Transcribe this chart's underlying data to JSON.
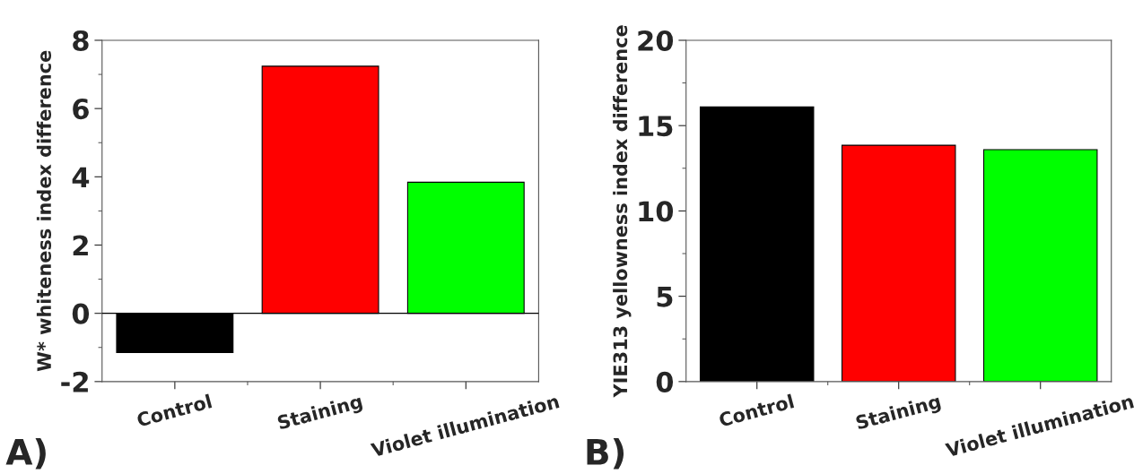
{
  "chart_data": [
    {
      "type": "bar",
      "ylabel": "W* whiteness index difference",
      "categories": [
        "Control",
        "Staining",
        "Violet illumination"
      ],
      "values": [
        -1.15,
        7.24,
        3.84
      ],
      "colors": [
        "#000000",
        "#ff0000",
        "#00ff00"
      ],
      "ylim": [
        -2,
        8
      ],
      "yticks": [
        -2,
        0,
        2,
        4,
        6,
        8
      ],
      "grid": false,
      "ref_lines": [
        {
          "axis": "y",
          "value": 0,
          "color": "#000000"
        }
      ],
      "annotations": [
        "A)"
      ]
    },
    {
      "type": "bar",
      "ylabel": "YIE313 yellowness index difference",
      "categories": [
        "Control",
        "Staining",
        "Violet illumination"
      ],
      "values": [
        16.09,
        13.85,
        13.59
      ],
      "colors": [
        "#000000",
        "#ff0000",
        "#00ff00"
      ],
      "ylim": [
        0,
        20
      ],
      "yticks": [
        0,
        5,
        10,
        15,
        20
      ],
      "grid": false,
      "annotations": [
        "B)"
      ]
    }
  ]
}
